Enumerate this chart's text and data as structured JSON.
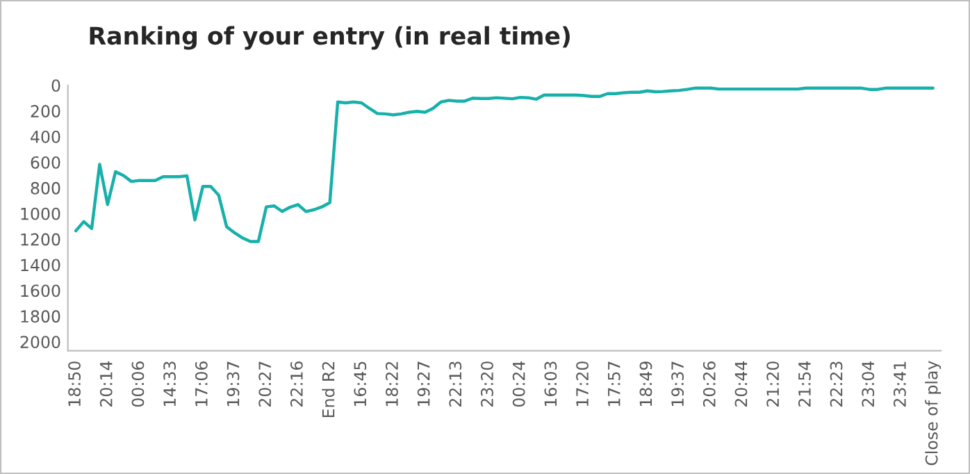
{
  "chart_data": {
    "type": "line",
    "title": "Ranking of your entry (in real time)",
    "categories": [
      "18:50",
      null,
      null,
      null,
      "20:14",
      null,
      null,
      null,
      "00:06",
      null,
      null,
      null,
      "14:33",
      null,
      null,
      null,
      "17:06",
      null,
      null,
      null,
      "19:37",
      null,
      null,
      null,
      "20:27",
      null,
      null,
      null,
      "22:16",
      null,
      null,
      null,
      "End R2",
      null,
      null,
      null,
      "16:45",
      null,
      null,
      null,
      "18:22",
      null,
      null,
      null,
      "19:27",
      null,
      null,
      null,
      "22:13",
      null,
      null,
      null,
      "23:20",
      null,
      null,
      null,
      "00:24",
      null,
      null,
      null,
      "16:03",
      null,
      null,
      null,
      "17:20",
      null,
      null,
      null,
      "17:57",
      null,
      null,
      null,
      "18:49",
      null,
      null,
      null,
      "19:37",
      null,
      null,
      null,
      "20:26",
      null,
      null,
      null,
      "20:44",
      null,
      null,
      null,
      "21:20",
      null,
      null,
      null,
      "21:54",
      null,
      null,
      null,
      "22:23",
      null,
      null,
      null,
      "23:04",
      null,
      null,
      null,
      "23:41",
      null,
      null,
      null,
      "Close of play"
    ],
    "series": [
      {
        "color": "#17b0aa",
        "values": [
          1135,
          1063,
          1117,
          616,
          930,
          674,
          703,
          750,
          742,
          742,
          742,
          713,
          713,
          713,
          706,
          1049,
          789,
          789,
          857,
          1103,
          1150,
          1190,
          1218,
          1218,
          948,
          940,
          984,
          950,
          930,
          984,
          970,
          948,
          915,
          130,
          137,
          130,
          137,
          180,
          220,
          223,
          230,
          223,
          210,
          203,
          210,
          180,
          130,
          117,
          123,
          123,
          100,
          103,
          103,
          97,
          101,
          105,
          94,
          97,
          108,
          76,
          76,
          76,
          76,
          76,
          80,
          87,
          87,
          65,
          65,
          58,
          54,
          54,
          43,
          50,
          48,
          43,
          40,
          32,
          22,
          22,
          22,
          29,
          29,
          29,
          29,
          29,
          29,
          29,
          29,
          29,
          29,
          29,
          22,
          22,
          22,
          22,
          22,
          22,
          22,
          22,
          32,
          32,
          22,
          22,
          22,
          22,
          22,
          22,
          22
        ]
      }
    ],
    "ylim": [
      2070,
      0
    ],
    "yticks": [
      0,
      200,
      400,
      600,
      800,
      1000,
      1200,
      1400,
      1600,
      1800,
      2000
    ],
    "grid": false,
    "legend": false,
    "marker": "none",
    "line_style": "solid"
  }
}
